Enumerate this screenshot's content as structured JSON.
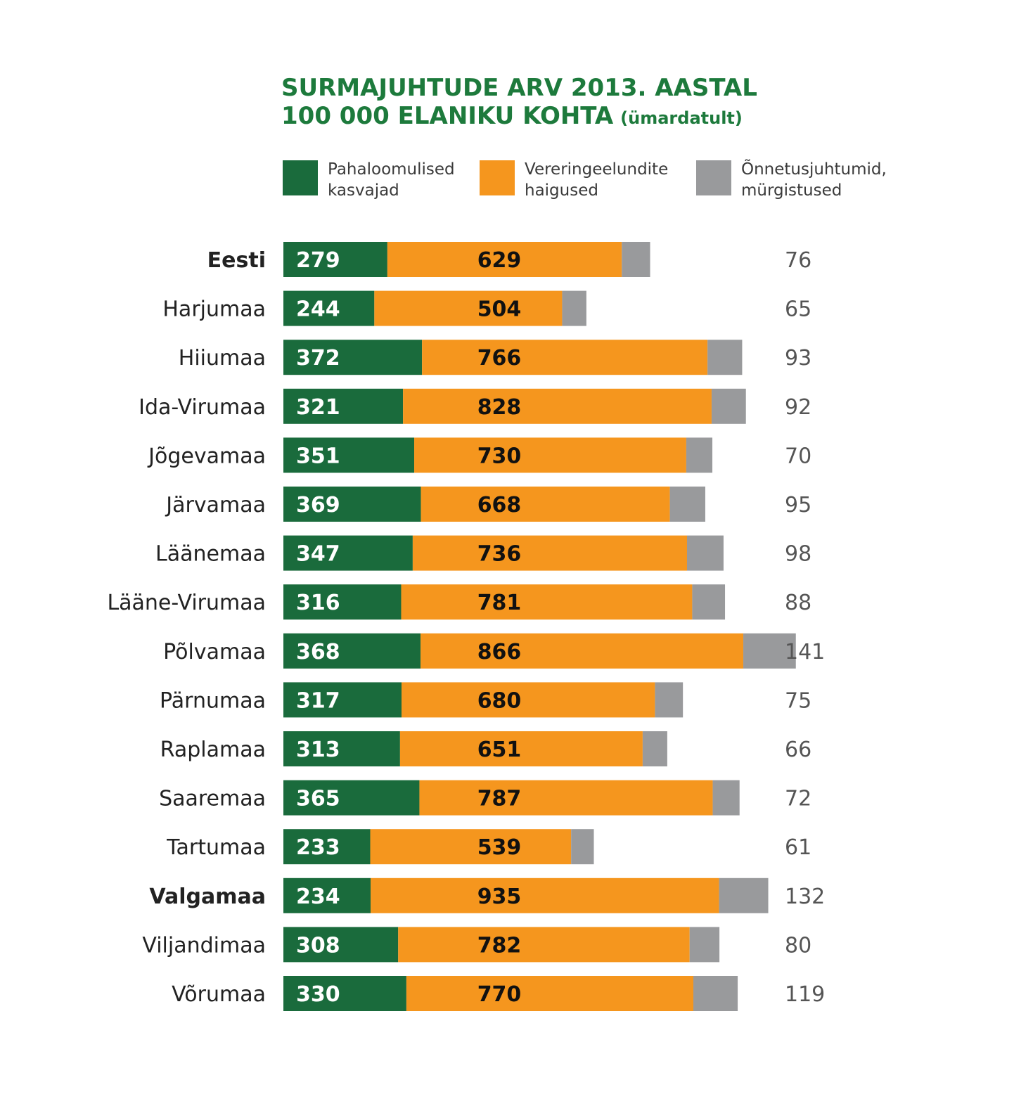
{
  "chart_data": {
    "type": "bar",
    "orientation": "horizontal",
    "stacked": true,
    "title_line1": "SURMAJUHTUDE ARV 2013. AASTAL",
    "title_line2": "100 000 ELANIKU KOHTA",
    "title_note": "(ümardatult)",
    "legend_placement": "top",
    "categories": [
      "Eesti",
      "Harjumaa",
      "Hiiumaa",
      "Ida-Virumaa",
      "Jõgevamaa",
      "Järvamaa",
      "Läänemaa",
      "Lääne-Virumaa",
      "Põlvamaa",
      "Pärnumaa",
      "Raplamaa",
      "Saaremaa",
      "Tartumaa",
      "Valgamaa",
      "Viljandimaa",
      "Võrumaa"
    ],
    "highlight": {
      "bold": "Eesti",
      "green": "Valgamaa"
    },
    "series": [
      {
        "name_line1": "Pahaloomulised",
        "name_line2": "kasvajad",
        "color": "#1a6b3c",
        "label_color": "#ffffff",
        "values": [
          279,
          244,
          372,
          321,
          351,
          369,
          347,
          316,
          368,
          317,
          313,
          365,
          233,
          234,
          308,
          330
        ]
      },
      {
        "name_line1": "Vereringeelundite",
        "name_line2": "haigused",
        "color": "#f5961e",
        "label_color": "#111111",
        "values": [
          629,
          504,
          766,
          828,
          730,
          668,
          736,
          781,
          866,
          680,
          651,
          787,
          539,
          935,
          782,
          770
        ]
      },
      {
        "name_line1": "Õnnetusjuhtumid,",
        "name_line2": "mürgistused",
        "color": "#999a9c",
        "label_color": "#555555",
        "values": [
          76,
          65,
          93,
          92,
          70,
          95,
          98,
          88,
          141,
          75,
          66,
          72,
          61,
          132,
          80,
          119
        ]
      }
    ]
  }
}
